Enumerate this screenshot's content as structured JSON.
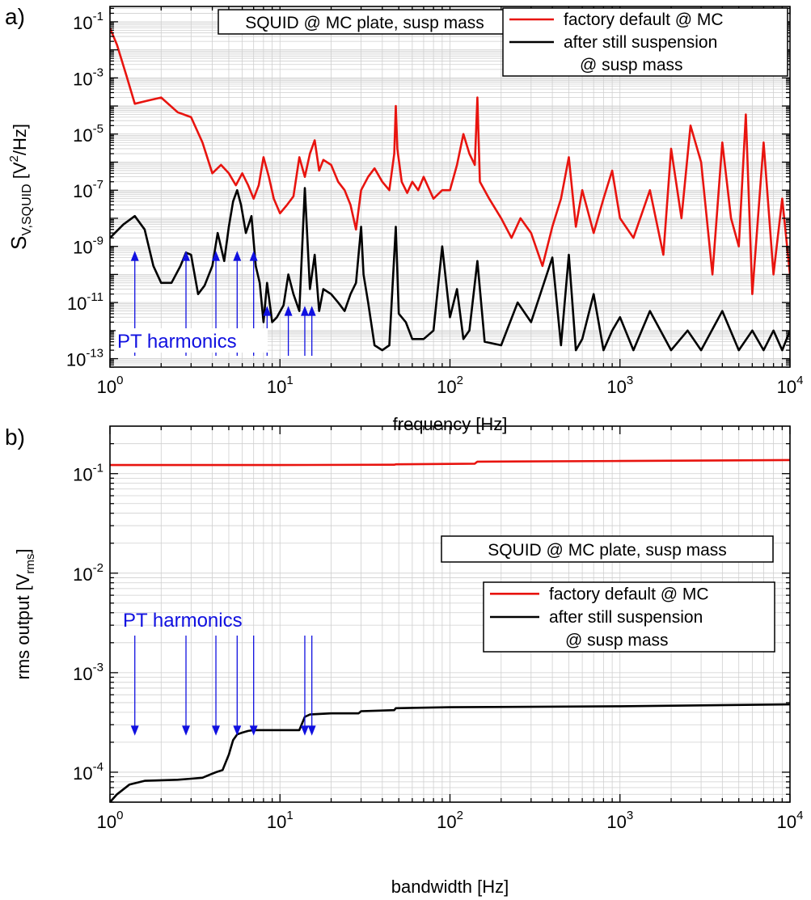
{
  "colors": {
    "red": "#e8140f",
    "black": "#000000",
    "blue": "#1010e0",
    "grid": "#cfcfcf"
  },
  "chart_data": [
    {
      "panel": "a)",
      "type": "line",
      "xscale": "log",
      "yscale": "log",
      "xlim": [
        1,
        10000
      ],
      "ylim": [
        5e-14,
        0.35
      ],
      "xlabel": "frequency [Hz]",
      "ylabel_main": "S",
      "ylabel_sub": "V,SQUID",
      "ylabel_unit_pre": " [V",
      "ylabel_unit_sup": "2",
      "ylabel_unit_post": "/Hz]",
      "x_ticks": [
        {
          "base": "10",
          "exp": "0",
          "v": 1
        },
        {
          "base": "10",
          "exp": "1",
          "v": 10
        },
        {
          "base": "10",
          "exp": "2",
          "v": 100
        },
        {
          "base": "10",
          "exp": "3",
          "v": 1000
        },
        {
          "base": "10",
          "exp": "4",
          "v": 10000
        }
      ],
      "y_ticks": [
        {
          "base": "10",
          "exp": "-1",
          "v": 0.1
        },
        {
          "base": "10",
          "exp": "-3",
          "v": 0.001
        },
        {
          "base": "10",
          "exp": "-5",
          "v": 1e-05
        },
        {
          "base": "10",
          "exp": "-7",
          "v": 1e-07
        },
        {
          "base": "10",
          "exp": "-9",
          "v": 1e-09
        },
        {
          "base": "10",
          "exp": "-11",
          "v": 1e-11
        },
        {
          "base": "10",
          "exp": "-13",
          "v": 1e-13
        }
      ],
      "grid": true,
      "annotation_box": "SQUID @ MC plate, susp mass",
      "legend_lines": [
        "factory default @ MC",
        "after still suspension",
        "@ susp mass"
      ],
      "legend_placement": "top-right",
      "arrows_label": "PT harmonics",
      "arrow_direction": "up",
      "arrow_x": [
        1.4,
        2.8,
        4.2,
        5.6,
        7.0,
        8.4,
        11.2,
        14.0,
        15.4
      ],
      "series": [
        {
          "name": "factory default @ MC",
          "color": "red",
          "points": [
            [
              1,
              0.06
            ],
            [
              1.1,
              0.015
            ],
            [
              1.25,
              0.0012
            ],
            [
              1.4,
              0.00012
            ],
            [
              1.7,
              0.00016
            ],
            [
              2.0,
              0.0002
            ],
            [
              2.5,
              6e-05
            ],
            [
              3.0,
              4e-05
            ],
            [
              3.5,
              5e-06
            ],
            [
              4.0,
              4e-07
            ],
            [
              4.5,
              8e-07
            ],
            [
              5.0,
              4e-07
            ],
            [
              5.5,
              1.5e-07
            ],
            [
              6.0,
              4e-07
            ],
            [
              6.5,
              1.5e-07
            ],
            [
              7.0,
              5e-08
            ],
            [
              7.5,
              1.5e-07
            ],
            [
              8.0,
              1.5e-06
            ],
            [
              8.6,
              3e-07
            ],
            [
              9.2,
              5e-08
            ],
            [
              10,
              1.5e-08
            ],
            [
              11,
              3e-08
            ],
            [
              12,
              6e-08
            ],
            [
              13,
              1.5e-06
            ],
            [
              14,
              3e-07
            ],
            [
              15,
              2e-06
            ],
            [
              16,
              6e-06
            ],
            [
              17,
              5e-07
            ],
            [
              18,
              1.2e-06
            ],
            [
              20,
              8e-07
            ],
            [
              22,
              2e-07
            ],
            [
              24,
              1e-07
            ],
            [
              26,
              3e-08
            ],
            [
              28,
              4e-09
            ],
            [
              30,
              1e-07
            ],
            [
              33,
              3e-07
            ],
            [
              36,
              6e-07
            ],
            [
              40,
              2e-07
            ],
            [
              44,
              1e-07
            ],
            [
              47,
              2e-06
            ],
            [
              48,
              0.0001
            ],
            [
              49,
              3e-06
            ],
            [
              52,
              2e-07
            ],
            [
              56,
              8e-08
            ],
            [
              60,
              2e-07
            ],
            [
              65,
              1e-07
            ],
            [
              70,
              3e-07
            ],
            [
              80,
              5e-08
            ],
            [
              90,
              1e-07
            ],
            [
              100,
              1e-07
            ],
            [
              110,
              8e-07
            ],
            [
              120,
              1e-05
            ],
            [
              130,
              2e-06
            ],
            [
              140,
              8e-07
            ],
            [
              145,
              0.0002
            ],
            [
              150,
              2e-07
            ],
            [
              170,
              5e-08
            ],
            [
              200,
              1e-08
            ],
            [
              230,
              2e-09
            ],
            [
              260,
              1e-08
            ],
            [
              300,
              3e-09
            ],
            [
              350,
              2e-10
            ],
            [
              400,
              5e-09
            ],
            [
              450,
              5e-08
            ],
            [
              500,
              1.5e-06
            ],
            [
              550,
              5e-09
            ],
            [
              600,
              1e-07
            ],
            [
              700,
              3e-09
            ],
            [
              800,
              5e-08
            ],
            [
              900,
              5e-07
            ],
            [
              1000,
              1e-08
            ],
            [
              1200,
              2e-09
            ],
            [
              1500,
              1e-07
            ],
            [
              1800,
              5e-10
            ],
            [
              2000,
              3e-06
            ],
            [
              2300,
              1e-08
            ],
            [
              2600,
              2e-05
            ],
            [
              3000,
              1e-06
            ],
            [
              3500,
              1e-10
            ],
            [
              4000,
              5e-06
            ],
            [
              4500,
              1e-08
            ],
            [
              5000,
              1e-09
            ],
            [
              5500,
              5e-05
            ],
            [
              6000,
              2e-11
            ],
            [
              7000,
              5e-06
            ],
            [
              8000,
              1e-10
            ],
            [
              9000,
              5e-08
            ],
            [
              10000,
              1e-10
            ]
          ]
        },
        {
          "name": "after still suspension",
          "color": "black",
          "points": [
            [
              1,
              2e-09
            ],
            [
              1.2,
              6e-09
            ],
            [
              1.4,
              1.2e-08
            ],
            [
              1.6,
              4e-09
            ],
            [
              1.8,
              2e-10
            ],
            [
              2.0,
              5e-11
            ],
            [
              2.3,
              5e-11
            ],
            [
              2.6,
              2e-10
            ],
            [
              2.8,
              6e-10
            ],
            [
              3.0,
              5e-10
            ],
            [
              3.3,
              2e-11
            ],
            [
              3.6,
              4e-11
            ],
            [
              4.0,
              2e-10
            ],
            [
              4.3,
              3e-09
            ],
            [
              4.7,
              3e-10
            ],
            [
              5.0,
              5e-09
            ],
            [
              5.3,
              4e-08
            ],
            [
              5.6,
              1e-07
            ],
            [
              5.9,
              3e-08
            ],
            [
              6.3,
              3e-09
            ],
            [
              6.8,
              1.2e-08
            ],
            [
              7.2,
              2e-10
            ],
            [
              7.6,
              5e-11
            ],
            [
              8.0,
              2e-12
            ],
            [
              8.4,
              5e-11
            ],
            [
              9.0,
              2e-12
            ],
            [
              9.6,
              3e-12
            ],
            [
              10.5,
              8e-12
            ],
            [
              11.2,
              1e-10
            ],
            [
              12,
              2e-11
            ],
            [
              13,
              5e-12
            ],
            [
              14,
              1.2e-07
            ],
            [
              15,
              3e-11
            ],
            [
              16,
              5e-10
            ],
            [
              17,
              5e-12
            ],
            [
              18,
              3e-11
            ],
            [
              20,
              2e-11
            ],
            [
              22,
              1e-11
            ],
            [
              24,
              5e-12
            ],
            [
              26,
              2e-11
            ],
            [
              28,
              5e-11
            ],
            [
              30,
              5e-09
            ],
            [
              31,
              1e-10
            ],
            [
              33,
              1e-11
            ],
            [
              36,
              3e-13
            ],
            [
              40,
              2e-13
            ],
            [
              44,
              3e-13
            ],
            [
              48,
              5e-09
            ],
            [
              50,
              4e-12
            ],
            [
              55,
              2e-12
            ],
            [
              60,
              5e-13
            ],
            [
              70,
              5e-13
            ],
            [
              80,
              1e-12
            ],
            [
              90,
              1e-09
            ],
            [
              100,
              3e-12
            ],
            [
              110,
              3e-11
            ],
            [
              120,
              5e-13
            ],
            [
              130,
              1e-12
            ],
            [
              145,
              3e-10
            ],
            [
              160,
              4e-13
            ],
            [
              200,
              3e-13
            ],
            [
              250,
              1e-11
            ],
            [
              300,
              2e-12
            ],
            [
              400,
              4e-10
            ],
            [
              450,
              3e-13
            ],
            [
              500,
              5e-10
            ],
            [
              550,
              2e-13
            ],
            [
              600,
              5e-13
            ],
            [
              700,
              2e-11
            ],
            [
              800,
              2e-13
            ],
            [
              900,
              1e-12
            ],
            [
              1000,
              3e-12
            ],
            [
              1200,
              2e-13
            ],
            [
              1500,
              5e-12
            ],
            [
              2000,
              2e-13
            ],
            [
              2500,
              1e-12
            ],
            [
              3000,
              2e-13
            ],
            [
              4000,
              5e-12
            ],
            [
              5000,
              2e-13
            ],
            [
              6000,
              1e-12
            ],
            [
              7000,
              2e-13
            ],
            [
              8000,
              1e-12
            ],
            [
              9000,
              2e-13
            ],
            [
              10000,
              1e-12
            ]
          ]
        }
      ]
    },
    {
      "panel": "b)",
      "type": "line",
      "xscale": "log",
      "yscale": "log",
      "xlim": [
        1,
        10000
      ],
      "ylim": [
        5e-05,
        0.3
      ],
      "xlabel": "bandwidth [Hz]",
      "ylabel_main": "rms output [V",
      "ylabel_sub": "rms",
      "ylabel_post": "]",
      "x_ticks": [
        {
          "base": "10",
          "exp": "0",
          "v": 1
        },
        {
          "base": "10",
          "exp": "1",
          "v": 10
        },
        {
          "base": "10",
          "exp": "2",
          "v": 100
        },
        {
          "base": "10",
          "exp": "3",
          "v": 1000
        },
        {
          "base": "10",
          "exp": "4",
          "v": 10000
        }
      ],
      "y_ticks": [
        {
          "base": "10",
          "exp": "-1",
          "v": 0.1
        },
        {
          "base": "10",
          "exp": "-2",
          "v": 0.01
        },
        {
          "base": "10",
          "exp": "-3",
          "v": 0.001
        },
        {
          "base": "10",
          "exp": "-4",
          "v": 0.0001
        }
      ],
      "grid": true,
      "annotation_box": "SQUID @ MC plate, susp mass",
      "legend_lines": [
        "factory default @ MC",
        "after still suspension",
        "@ susp mass"
      ],
      "legend_placement": "center-right",
      "arrows_label": "PT harmonics",
      "arrow_direction": "down",
      "arrow_x": [
        1.4,
        2.8,
        4.2,
        5.6,
        7.0,
        14.0,
        15.4
      ],
      "series": [
        {
          "name": "factory default @ MC",
          "color": "red",
          "points": [
            [
              1,
              0.122
            ],
            [
              10,
              0.122
            ],
            [
              47,
              0.123
            ],
            [
              48,
              0.124
            ],
            [
              140,
              0.126
            ],
            [
              145,
              0.132
            ],
            [
              1000,
              0.134
            ],
            [
              10000,
              0.137
            ]
          ]
        },
        {
          "name": "after still suspension",
          "color": "black",
          "points": [
            [
              1,
              5e-05
            ],
            [
              1.1,
              6e-05
            ],
            [
              1.3,
              7.5e-05
            ],
            [
              1.6,
              8.2e-05
            ],
            [
              2.0,
              8.3e-05
            ],
            [
              2.5,
              8.4e-05
            ],
            [
              3.0,
              8.6e-05
            ],
            [
              3.5,
              8.8e-05
            ],
            [
              3.9,
              9.5e-05
            ],
            [
              4.2,
              0.0001
            ],
            [
              4.6,
              0.000105
            ],
            [
              5.0,
              0.00015
            ],
            [
              5.3,
              0.00021
            ],
            [
              5.6,
              0.00024
            ],
            [
              6.0,
              0.00025
            ],
            [
              6.5,
              0.00026
            ],
            [
              7.0,
              0.000265
            ],
            [
              10,
              0.000265
            ],
            [
              13,
              0.000265
            ],
            [
              14,
              0.00036
            ],
            [
              15,
              0.00038
            ],
            [
              20,
              0.00039
            ],
            [
              29,
              0.00039
            ],
            [
              30,
              0.00041
            ],
            [
              47,
              0.00042
            ],
            [
              48,
              0.00044
            ],
            [
              100,
              0.00045
            ],
            [
              1000,
              0.00046
            ],
            [
              10000,
              0.00048
            ]
          ]
        }
      ]
    }
  ]
}
